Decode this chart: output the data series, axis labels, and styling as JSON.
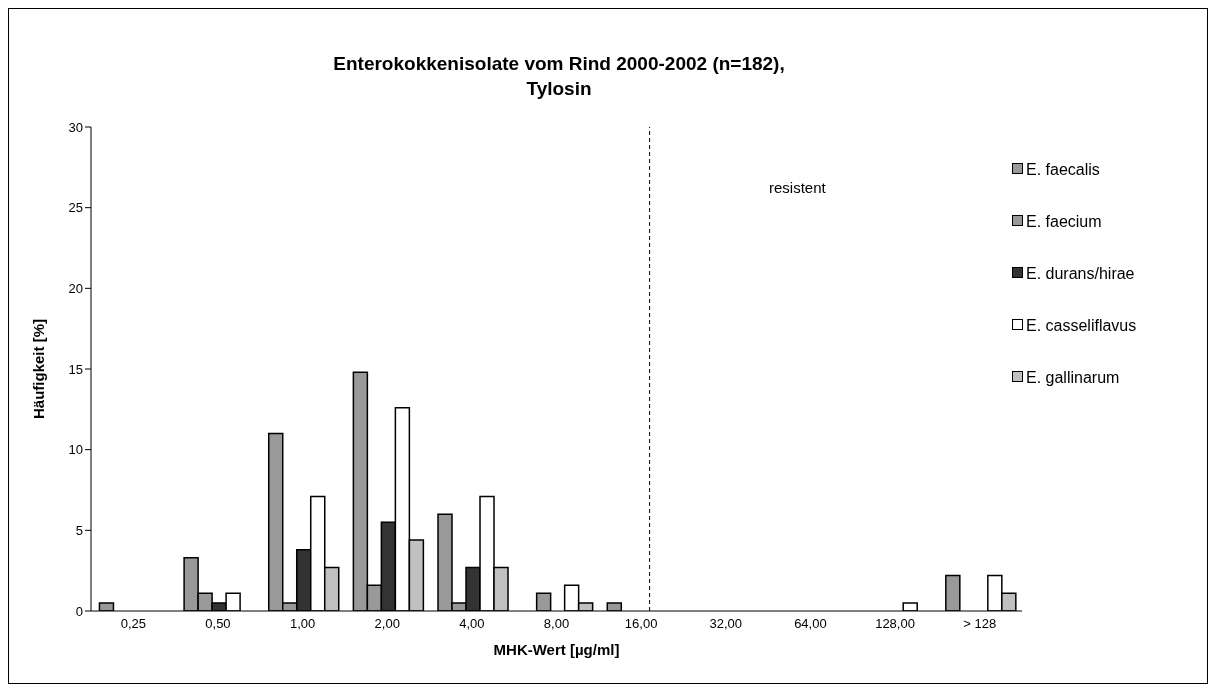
{
  "chart_data": {
    "type": "bar",
    "title": "Enterokokkenisolate vom Rind 2000-2002 (n=182),\nTylosin",
    "xlabel": "MHK-Wert [µg/ml]",
    "ylabel": "Häufigkeit [%]",
    "categories": [
      "0,25",
      "0,50",
      "1,00",
      "2,00",
      "4,00",
      "8,00",
      "16,00",
      "32,00",
      "64,00",
      "128,00",
      "> 128"
    ],
    "series": [
      {
        "name": "E. faecalis",
        "color": "#999999",
        "values": [
          0.5,
          3.3,
          11.0,
          14.8,
          6.0,
          0,
          0.5,
          0,
          0,
          0,
          2.2
        ]
      },
      {
        "name": "E. faecium",
        "color": "#999999",
        "values": [
          0,
          1.1,
          0.5,
          1.6,
          0.5,
          1.1,
          0,
          0,
          0,
          0,
          0
        ]
      },
      {
        "name": "E. durans/hirae",
        "color": "#333333",
        "values": [
          0,
          0.5,
          3.8,
          5.5,
          2.7,
          0,
          0,
          0,
          0,
          0,
          0
        ]
      },
      {
        "name": "E. casseliflavus",
        "color": "#ffffff",
        "values": [
          0,
          1.1,
          7.1,
          12.6,
          7.1,
          1.6,
          0,
          0,
          0,
          0.5,
          2.2
        ]
      },
      {
        "name": "E. gallinarum",
        "color": "#c0c0c0",
        "values": [
          0,
          0,
          2.7,
          4.4,
          2.7,
          0.5,
          0,
          0,
          0,
          0,
          1.1
        ]
      }
    ],
    "ylim": [
      0,
      30
    ],
    "yticks": [
      0,
      5,
      10,
      15,
      20,
      25,
      30
    ],
    "legend": "right",
    "ref_lines": [
      {
        "axis": "x",
        "value": "16,00",
        "line_style": "dashed"
      }
    ],
    "annotations": [
      "resistent"
    ]
  }
}
